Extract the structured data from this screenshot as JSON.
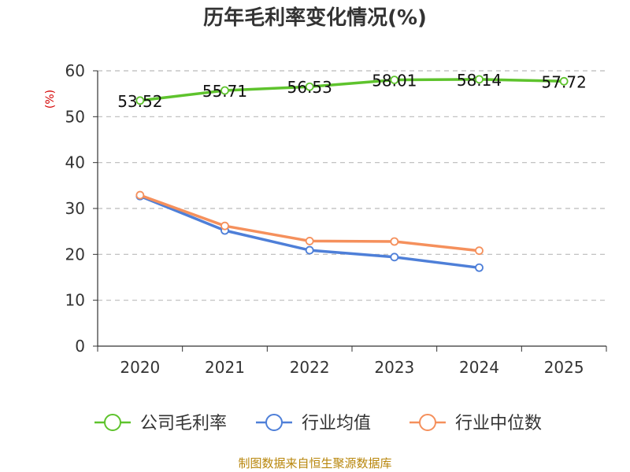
{
  "chart_data": {
    "type": "line",
    "title": "历年毛利率变化情况(%)",
    "ylabel": "(%)",
    "xlabel": "",
    "categories": [
      "2020",
      "2021",
      "2022",
      "2023",
      "2024",
      "2025"
    ],
    "ylim": [
      0,
      60
    ],
    "yticks": [
      0,
      10,
      20,
      30,
      40,
      50,
      60
    ],
    "grid": true,
    "legend_position": "bottom",
    "series": [
      {
        "name": "公司毛利率",
        "color": "#5ec32d",
        "values": [
          53.52,
          55.71,
          56.53,
          58.01,
          58.14,
          57.72
        ],
        "labels": [
          "53.52",
          "55.71",
          "56.53",
          "58.01",
          "58.14",
          "57.72"
        ]
      },
      {
        "name": "行业均值",
        "color": "#4e7fd8",
        "values": [
          32.7,
          25.2,
          20.9,
          19.4,
          17.1,
          null
        ]
      },
      {
        "name": "行业中位数",
        "color": "#f5905c",
        "values": [
          32.9,
          26.2,
          22.9,
          22.8,
          20.8,
          null
        ]
      }
    ]
  },
  "source": "制图数据来自恒生聚源数据库"
}
